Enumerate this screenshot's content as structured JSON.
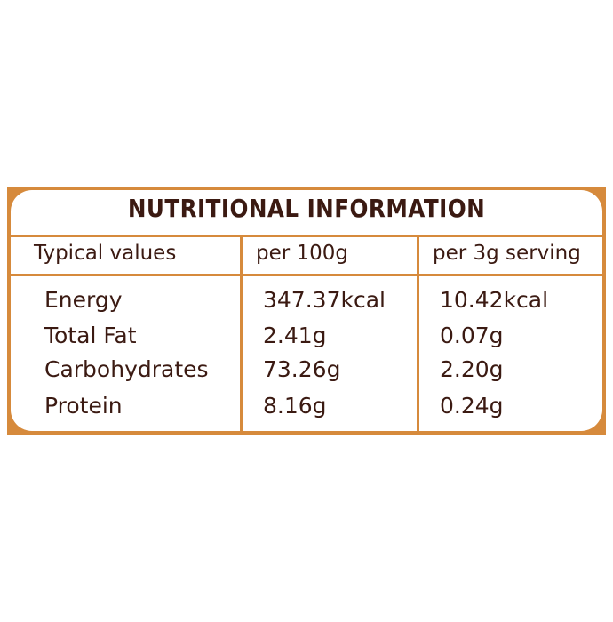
{
  "title": "NUTRITIONAL INFORMATION",
  "table": {
    "header": [
      "Typical values",
      "per 100g",
      "per 3g serving"
    ],
    "rows": [
      [
        "Energy",
        "347.37kcal",
        "10.42kcal"
      ],
      [
        "Total Fat",
        "2.41g",
        "0.07g"
      ],
      [
        "Carbohydrates",
        "73.26g",
        "2.20g"
      ],
      [
        "Protein",
        "8.16g",
        "0.24g"
      ]
    ]
  }
}
